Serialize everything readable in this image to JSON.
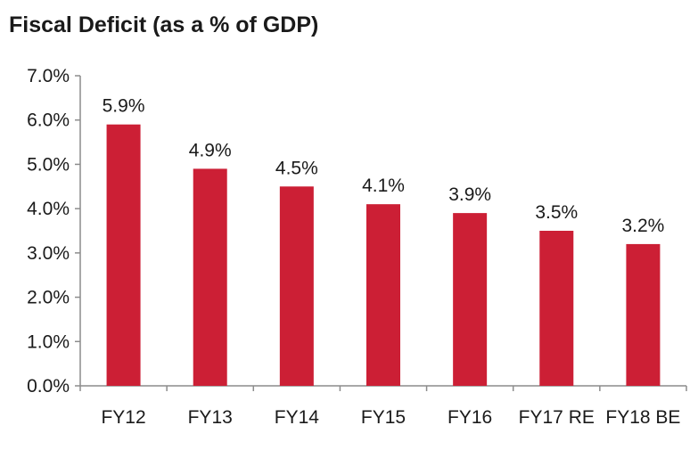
{
  "chart_data": {
    "type": "bar",
    "title": "Fiscal Deficit (as a % of GDP)",
    "xlabel": "",
    "ylabel": "",
    "categories": [
      "FY12",
      "FY13",
      "FY14",
      "FY15",
      "FY16",
      "FY17 RE",
      "FY18 BE"
    ],
    "values": [
      5.9,
      4.9,
      4.5,
      4.1,
      3.9,
      3.5,
      3.2
    ],
    "data_labels": [
      "5.9%",
      "4.9%",
      "4.5%",
      "4.1%",
      "3.9%",
      "3.5%",
      "3.2%"
    ],
    "ylim": [
      0,
      7
    ],
    "yticks": [
      0,
      1,
      2,
      3,
      4,
      5,
      6,
      7
    ],
    "ytick_labels": [
      "0.0%",
      "1.0%",
      "2.0%",
      "3.0%",
      "4.0%",
      "5.0%",
      "6.0%",
      "7.0%"
    ],
    "grid": false,
    "legend": "none",
    "bar_color": "#cc1f35",
    "axis_color": "#8c8c8c"
  }
}
